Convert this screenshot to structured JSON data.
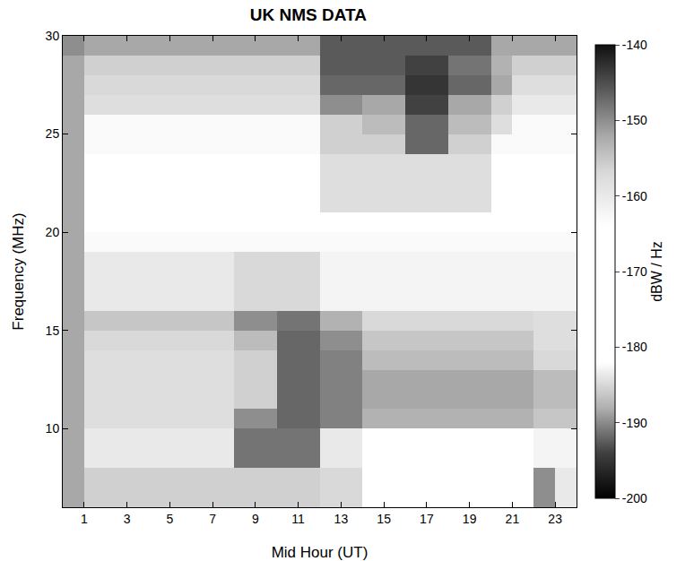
{
  "chart_data": {
    "type": "heatmap",
    "title": "UK NMS DATA",
    "x_label": "Mid Hour (UT)",
    "y_label": "Frequency (MHz)",
    "x": [
      0.5,
      1.5,
      2.5,
      3.5,
      4.5,
      5.5,
      6.5,
      7.5,
      8.5,
      9.5,
      10.5,
      11.5,
      12.5,
      13.5,
      14.5,
      15.5,
      16.5,
      17.5,
      18.5,
      19.5,
      20.5,
      21.5,
      22.5,
      23.5
    ],
    "y": [
      6.5,
      7.5,
      8.5,
      9.5,
      10.5,
      11.5,
      12.5,
      13.5,
      14.5,
      15.5,
      16.5,
      17.5,
      18.5,
      19.5,
      20.5,
      21.5,
      22.5,
      23.5,
      24.5,
      25.5,
      26.5,
      27.5,
      28.5,
      29.5
    ],
    "z": [
      [
        -152,
        -156,
        -156,
        -156,
        -156,
        -156,
        -156,
        -156,
        -156,
        -156,
        -156,
        -156,
        -157,
        -157,
        -165,
        -165,
        -165,
        -165,
        -165,
        -165,
        -165,
        -165,
        -150,
        -160
      ],
      [
        -152,
        -156,
        -156,
        -156,
        -156,
        -156,
        -156,
        -156,
        -156,
        -156,
        -156,
        -156,
        -157,
        -157,
        -165,
        -165,
        -165,
        -165,
        -165,
        -165,
        -165,
        -165,
        -150,
        -160
      ],
      [
        -152,
        -160,
        -160,
        -160,
        -160,
        -160,
        -160,
        -160,
        -148,
        -148,
        -148,
        -148,
        -160,
        -160,
        -165,
        -165,
        -165,
        -165,
        -165,
        -165,
        -165,
        -165,
        -162,
        -162
      ],
      [
        -152,
        -160,
        -160,
        -160,
        -160,
        -160,
        -160,
        -160,
        -148,
        -148,
        -148,
        -148,
        -160,
        -160,
        -165,
        -165,
        -165,
        -165,
        -165,
        -165,
        -165,
        -165,
        -162,
        -162
      ],
      [
        -152,
        -158,
        -158,
        -158,
        -158,
        -158,
        -158,
        -158,
        -150,
        -150,
        -147,
        -147,
        -149,
        -149,
        -153,
        -153,
        -153,
        -153,
        -153,
        -153,
        -153,
        -153,
        -155,
        -155
      ],
      [
        -152,
        -158,
        -158,
        -158,
        -158,
        -158,
        -158,
        -158,
        -156,
        -156,
        -147,
        -147,
        -149,
        -149,
        -152,
        -152,
        -152,
        -152,
        -152,
        -152,
        -152,
        -152,
        -154,
        -154
      ],
      [
        -152,
        -158,
        -158,
        -158,
        -158,
        -158,
        -158,
        -158,
        -156,
        -156,
        -147,
        -147,
        -149,
        -149,
        -152,
        -152,
        -152,
        -152,
        -152,
        -152,
        -152,
        -152,
        -154,
        -154
      ],
      [
        -152,
        -158,
        -158,
        -158,
        -158,
        -158,
        -158,
        -158,
        -156,
        -156,
        -147,
        -147,
        -149,
        -149,
        -154,
        -154,
        -154,
        -154,
        -154,
        -154,
        -154,
        -154,
        -157,
        -157
      ],
      [
        -152,
        -157,
        -157,
        -157,
        -157,
        -157,
        -157,
        -157,
        -154,
        -154,
        -147,
        -147,
        -150,
        -150,
        -155,
        -155,
        -155,
        -155,
        -155,
        -155,
        -155,
        -155,
        -158,
        -158
      ],
      [
        -152,
        -155,
        -155,
        -155,
        -155,
        -155,
        -155,
        -155,
        -150,
        -150,
        -148,
        -148,
        -153,
        -153,
        -157,
        -157,
        -157,
        -157,
        -157,
        -157,
        -157,
        -157,
        -158,
        -158
      ],
      [
        -152,
        -160,
        -160,
        -160,
        -160,
        -160,
        -160,
        -160,
        -157,
        -157,
        -157,
        -157,
        -162,
        -162,
        -162,
        -162,
        -162,
        -162,
        -162,
        -162,
        -162,
        -162,
        -162,
        -162
      ],
      [
        -152,
        -160,
        -160,
        -160,
        -160,
        -160,
        -160,
        -160,
        -157,
        -157,
        -157,
        -157,
        -162,
        -162,
        -162,
        -162,
        -162,
        -162,
        -162,
        -162,
        -162,
        -162,
        -162,
        -162
      ],
      [
        -152,
        -160,
        -160,
        -160,
        -160,
        -160,
        -160,
        -160,
        -157,
        -157,
        -157,
        -157,
        -162,
        -162,
        -162,
        -162,
        -162,
        -162,
        -162,
        -162,
        -162,
        -162,
        -162,
        -162
      ],
      [
        -152,
        -163,
        -163,
        -163,
        -163,
        -163,
        -163,
        -163,
        -163,
        -163,
        -163,
        -163,
        -163,
        -163,
        -163,
        -163,
        -163,
        -163,
        -163,
        -163,
        -163,
        -163,
        -163,
        -163
      ],
      [
        -152,
        -165,
        -165,
        -165,
        -165,
        -165,
        -165,
        -165,
        -165,
        -165,
        -165,
        -165,
        -165,
        -165,
        -165,
        -165,
        -165,
        -165,
        -165,
        -165,
        -165,
        -165,
        -165,
        -165
      ],
      [
        -152,
        -165,
        -165,
        -165,
        -165,
        -165,
        -165,
        -165,
        -165,
        -165,
        -165,
        -165,
        -158,
        -158,
        -158,
        -158,
        -158,
        -158,
        -158,
        -158,
        -165,
        -165,
        -165,
        -165
      ],
      [
        -152,
        -165,
        -165,
        -165,
        -165,
        -165,
        -165,
        -165,
        -165,
        -165,
        -165,
        -165,
        -158,
        -158,
        -158,
        -158,
        -158,
        -158,
        -158,
        -158,
        -165,
        -165,
        -165,
        -165
      ],
      [
        -152,
        -165,
        -165,
        -165,
        -165,
        -165,
        -165,
        -165,
        -165,
        -165,
        -165,
        -165,
        -158,
        -158,
        -158,
        -158,
        -158,
        -158,
        -158,
        -158,
        -165,
        -165,
        -165,
        -165
      ],
      [
        -152,
        -163,
        -163,
        -163,
        -163,
        -163,
        -163,
        -163,
        -163,
        -163,
        -163,
        -163,
        -156,
        -156,
        -156,
        -156,
        -147,
        -147,
        -156,
        -156,
        -163,
        -163,
        -163,
        -163
      ],
      [
        -152,
        -163,
        -163,
        -163,
        -163,
        -163,
        -163,
        -163,
        -163,
        -163,
        -163,
        -163,
        -156,
        -156,
        -154,
        -154,
        -147,
        -147,
        -154,
        -154,
        -158,
        -163,
        -163,
        -163
      ],
      [
        -152,
        -158,
        -158,
        -158,
        -158,
        -158,
        -158,
        -158,
        -158,
        -158,
        -158,
        -158,
        -150,
        -150,
        -152,
        -152,
        -144,
        -144,
        -152,
        -152,
        -156,
        -160,
        -160,
        -160
      ],
      [
        -152,
        -157,
        -157,
        -157,
        -157,
        -157,
        -157,
        -157,
        -157,
        -157,
        -157,
        -157,
        -147,
        -147,
        -147,
        -147,
        -143,
        -143,
        -147,
        -147,
        -152,
        -158,
        -158,
        -158
      ],
      [
        -152,
        -156,
        -156,
        -156,
        -156,
        -156,
        -156,
        -156,
        -156,
        -156,
        -156,
        -156,
        -146,
        -146,
        -146,
        -146,
        -144,
        -144,
        -148,
        -148,
        -153,
        -156,
        -156,
        -156
      ],
      [
        -150,
        -152,
        -152,
        -152,
        -152,
        -152,
        -152,
        -152,
        -152,
        -152,
        -152,
        -152,
        -146,
        -146,
        -146,
        -146,
        -146,
        -146,
        -146,
        -146,
        -152,
        -152,
        -152,
        -152
      ]
    ],
    "xlim": [
      0,
      24
    ],
    "ylim": [
      6,
      30
    ],
    "xticks": [
      1,
      3,
      5,
      7,
      9,
      11,
      13,
      15,
      17,
      19,
      21,
      23
    ],
    "yticks": [
      10,
      15,
      20,
      25,
      30
    ],
    "colorbar_label": "dBW / Hz",
    "colorbar_range": [
      -200,
      -140
    ],
    "colorbar_ticks": [
      -140,
      -150,
      -160,
      -170,
      -180,
      -190,
      -200
    ]
  }
}
